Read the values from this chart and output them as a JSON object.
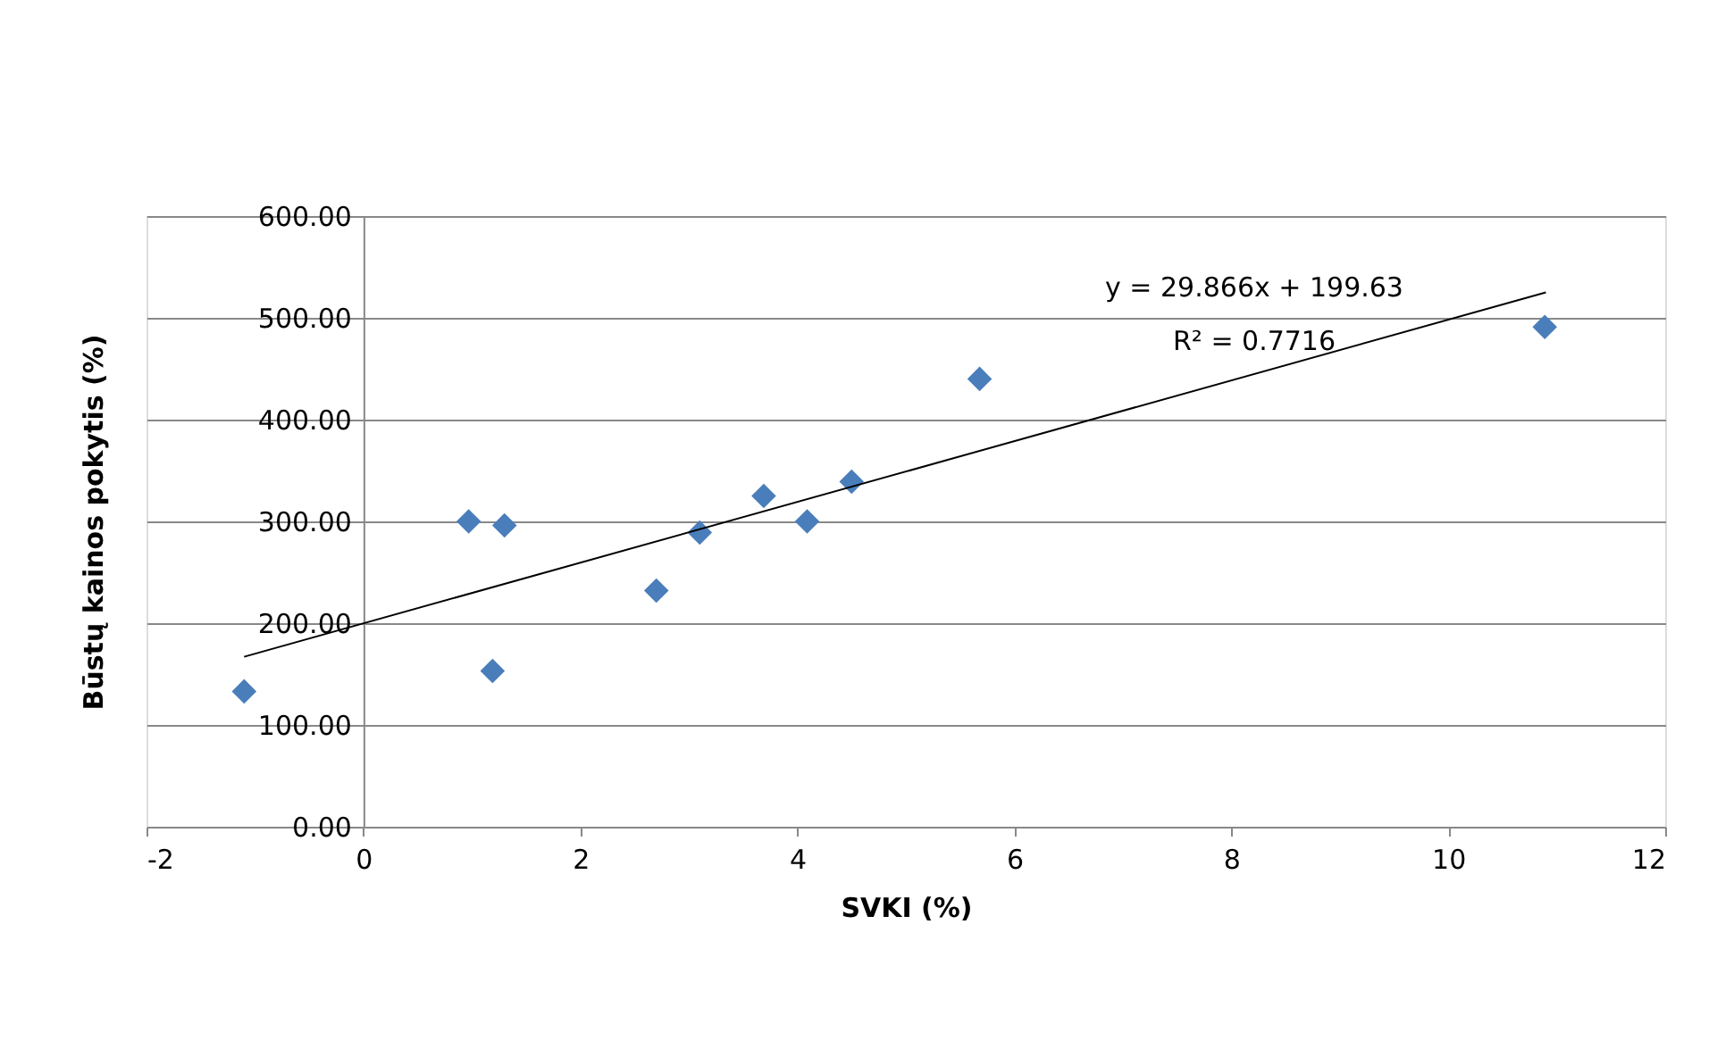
{
  "chart_data": {
    "type": "scatter",
    "xlabel": "SVKI (%)",
    "ylabel": "Būstų kainos pokytis (%)",
    "xlim": [
      -2,
      12
    ],
    "xticks": [
      -2,
      0,
      2,
      4,
      6,
      8,
      10,
      12
    ],
    "ylim": [
      0,
      600
    ],
    "yticks": [
      {
        "value": 0,
        "label": "0.00"
      },
      {
        "value": 100,
        "label": "100.00"
      },
      {
        "value": 200,
        "label": "200.00"
      },
      {
        "value": 300,
        "label": "300.00"
      },
      {
        "value": 400,
        "label": "400.00"
      },
      {
        "value": 500,
        "label": "500.00"
      },
      {
        "value": 600,
        "label": "600.00"
      }
    ],
    "grid": "y",
    "series": [
      {
        "marker": "diamond",
        "color": "#4a7ebb",
        "x": [
          -1.1,
          0.97,
          1.3,
          1.19,
          2.7,
          3.1,
          3.69,
          4.09,
          4.5,
          5.68,
          10.89
        ],
        "values": [
          133,
          300,
          296,
          153,
          232,
          289,
          325,
          300,
          339,
          440,
          491
        ]
      },
      {
        "type": "line",
        "color": "#000000",
        "x": [
          -1.1,
          10.9
        ],
        "values": [
          167,
          525
        ]
      }
    ],
    "annotations": [
      "y = 29.866x + 199.63",
      "R² = 0.7716"
    ]
  }
}
